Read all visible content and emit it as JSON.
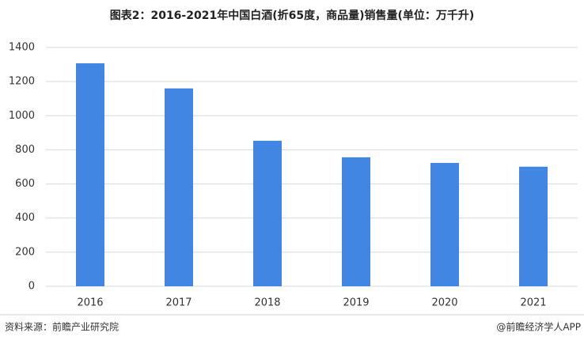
{
  "chart_data": {
    "type": "bar",
    "title": "图表2：2016-2021年中国白酒(折65度，商品量)销售量(单位：万千升)",
    "categories": [
      "2016",
      "2017",
      "2018",
      "2019",
      "2020",
      "2021"
    ],
    "values": [
      1307,
      1160,
      853,
      756,
      723,
      701
    ],
    "color": "#4286e3",
    "ylim": [
      0,
      1400
    ],
    "yticks": [
      0,
      200,
      400,
      600,
      800,
      1000,
      1200,
      1400
    ],
    "grid": true,
    "source": "资料来源：前瞻产业研究院",
    "credit": "@前瞻经济学人APP"
  }
}
